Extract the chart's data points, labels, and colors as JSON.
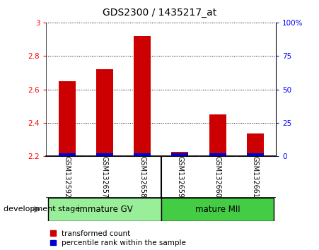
{
  "title": "GDS2300 / 1435217_at",
  "samples": [
    "GSM132592",
    "GSM132657",
    "GSM132658",
    "GSM132659",
    "GSM132660",
    "GSM132661"
  ],
  "transformed_count": [
    2.65,
    2.72,
    2.92,
    2.225,
    2.45,
    2.335
  ],
  "bar_bottom": 2.2,
  "ylim_left": [
    2.2,
    3.0
  ],
  "ylim_right": [
    0,
    100
  ],
  "yticks_left": [
    2.2,
    2.4,
    2.6,
    2.8,
    3.0
  ],
  "ytick_labels_left": [
    "2.2",
    "2.4",
    "2.6",
    "2.8",
    "3"
  ],
  "yticks_right": [
    0,
    25,
    50,
    75,
    100
  ],
  "ytick_labels_right": [
    "0",
    "25",
    "50",
    "75",
    "100%"
  ],
  "group1_label": "immature GV",
  "group2_label": "mature MII",
  "group1_indices": [
    0,
    1,
    2
  ],
  "group2_indices": [
    3,
    4,
    5
  ],
  "group1_color": "#99ee99",
  "group2_color": "#44cc44",
  "label_area_color": "#cccccc",
  "red_color": "#cc0000",
  "blue_color": "#0000cc",
  "bar_width": 0.45,
  "blue_bar_height": 0.018,
  "development_stage_label": "development stage",
  "legend_red_label": "transformed count",
  "legend_blue_label": "percentile rank within the sample",
  "plot_bg_color": "#ffffff",
  "outer_bg_color": "#ffffff",
  "title_fontsize": 10,
  "tick_fontsize": 7.5,
  "sample_fontsize": 7,
  "group_fontsize": 8.5,
  "dev_stage_fontsize": 8,
  "legend_fontsize": 7.5
}
